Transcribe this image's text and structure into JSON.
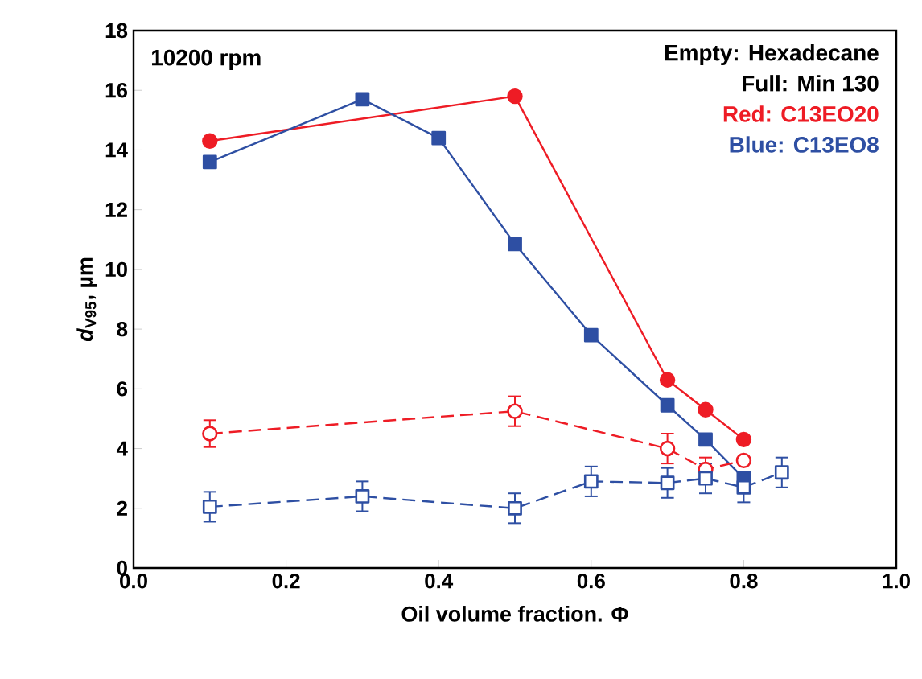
{
  "chart_data": {
    "type": "line",
    "xlabel": "Oil volume fraction. Φ",
    "ylabel": "*d*$_{V95}$, µm",
    "xlim": [
      0,
      1
    ],
    "ylim": [
      0,
      18
    ],
    "xticks": [
      {
        "value": 0,
        "label": "0.0"
      },
      {
        "value": 0.2,
        "label": "0.2"
      },
      {
        "value": 0.4,
        "label": "0.4"
      },
      {
        "value": 0.6,
        "label": "0.6"
      },
      {
        "value": 0.8,
        "label": "0.8"
      },
      {
        "value": 1,
        "label": "1.0"
      }
    ],
    "yticks": [
      0,
      2,
      4,
      6,
      8,
      10,
      12,
      14,
      16,
      18
    ],
    "grid": false,
    "series": [
      {
        "color": "#ee1c25",
        "marker": "circle",
        "line_style": "solid",
        "x": [
          0.1,
          0.5,
          0.7,
          0.75,
          0.8
        ],
        "values": [
          14.3,
          15.8,
          6.3,
          5.3,
          4.3
        ]
      },
      {
        "color": "#2e4fa3",
        "marker": "square",
        "line_style": "solid",
        "x": [
          0.1,
          0.3,
          0.4,
          0.5,
          0.6,
          0.7,
          0.75,
          0.8
        ],
        "values": [
          13.6,
          15.7,
          14.4,
          10.85,
          7.8,
          5.45,
          4.3,
          3.0
        ]
      },
      {
        "color": "#ee1c25",
        "marker": "circle",
        "line_style": "dashed",
        "x": [
          0.1,
          0.5,
          0.7,
          0.75,
          0.8
        ],
        "values": [
          4.5,
          5.25,
          4.0,
          3.3,
          3.6
        ],
        "errors": [
          0.45,
          0.5,
          0.5,
          0.4,
          null
        ]
      },
      {
        "color": "#2e4fa3",
        "marker": "square",
        "line_style": "dashed",
        "x": [
          0.1,
          0.3,
          0.5,
          0.6,
          0.7,
          0.75,
          0.8,
          0.85
        ],
        "values": [
          2.05,
          2.4,
          2.0,
          2.9,
          2.85,
          3.0,
          2.7,
          3.2
        ],
        "errors": [
          0.5,
          0.5,
          0.5,
          0.5,
          0.5,
          0.5,
          0.5,
          0.5
        ]
      }
    ],
    "annotations": [
      "10200 rpm",
      "Empty: Hexadecane",
      "Full: Min 130",
      "Red: C13EO20",
      "Blue: C13EO8"
    ]
  }
}
